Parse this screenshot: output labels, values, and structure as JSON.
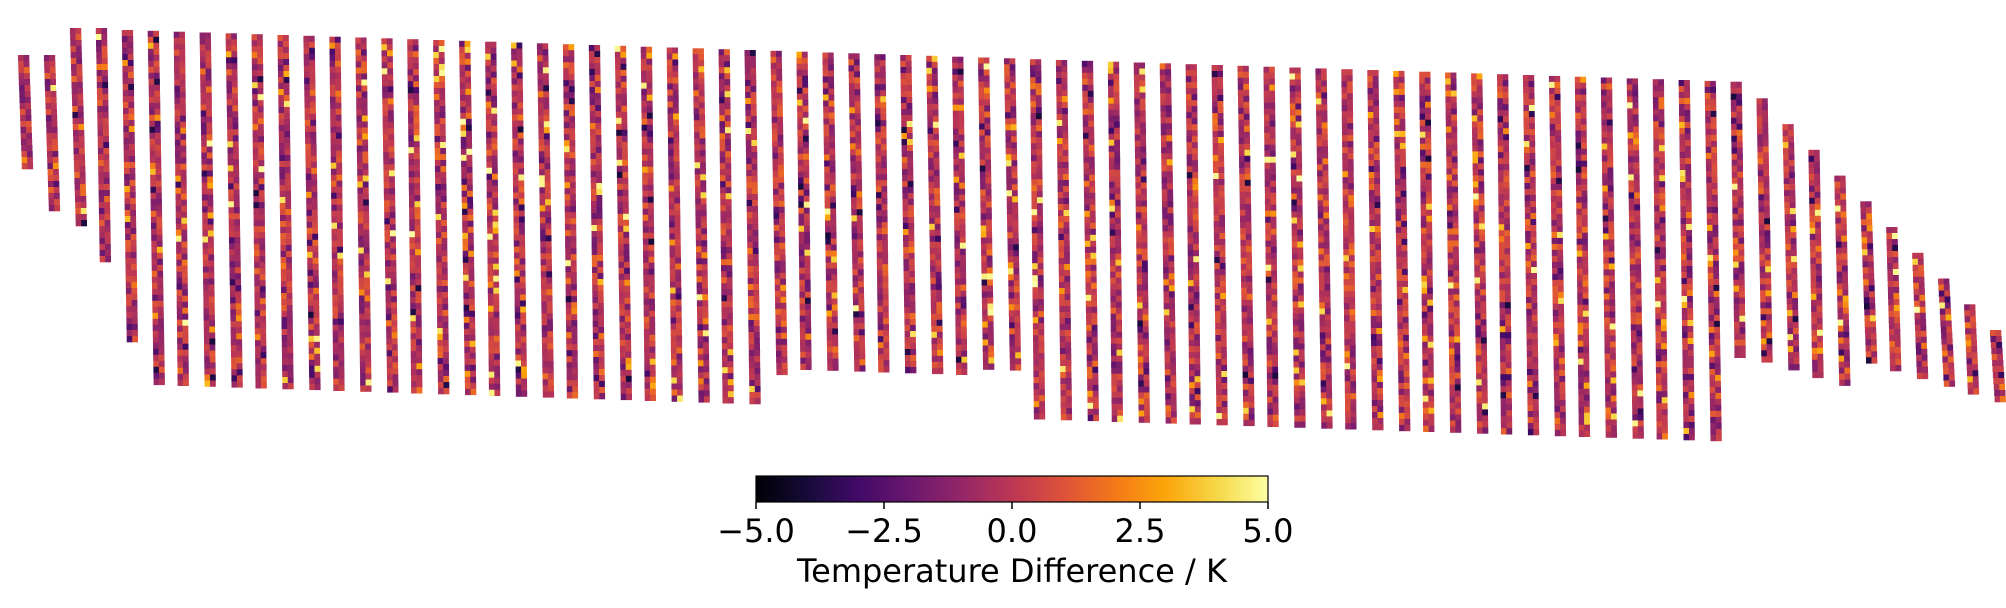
{
  "chart_data": {
    "type": "heatmap",
    "description_of_marks": "parallel survey strips of pixel-wise values",
    "strip_count": 77,
    "value_scale": {
      "colormap": "inferno",
      "vmin": -5.0,
      "vmax": 5.0,
      "typical_range": [
        -2.0,
        2.5
      ],
      "ticks": [
        -5.0,
        -2.5,
        0.0,
        2.5,
        5.0
      ],
      "tick_labels": [
        "−5.0",
        "−2.5",
        "0.0",
        "2.5",
        "5.0"
      ]
    },
    "colorbar": {
      "label": "Temperature Difference / K",
      "orientation": "horizontal",
      "placement": "bottom-center"
    },
    "axes_visible": false,
    "grid": false
  }
}
